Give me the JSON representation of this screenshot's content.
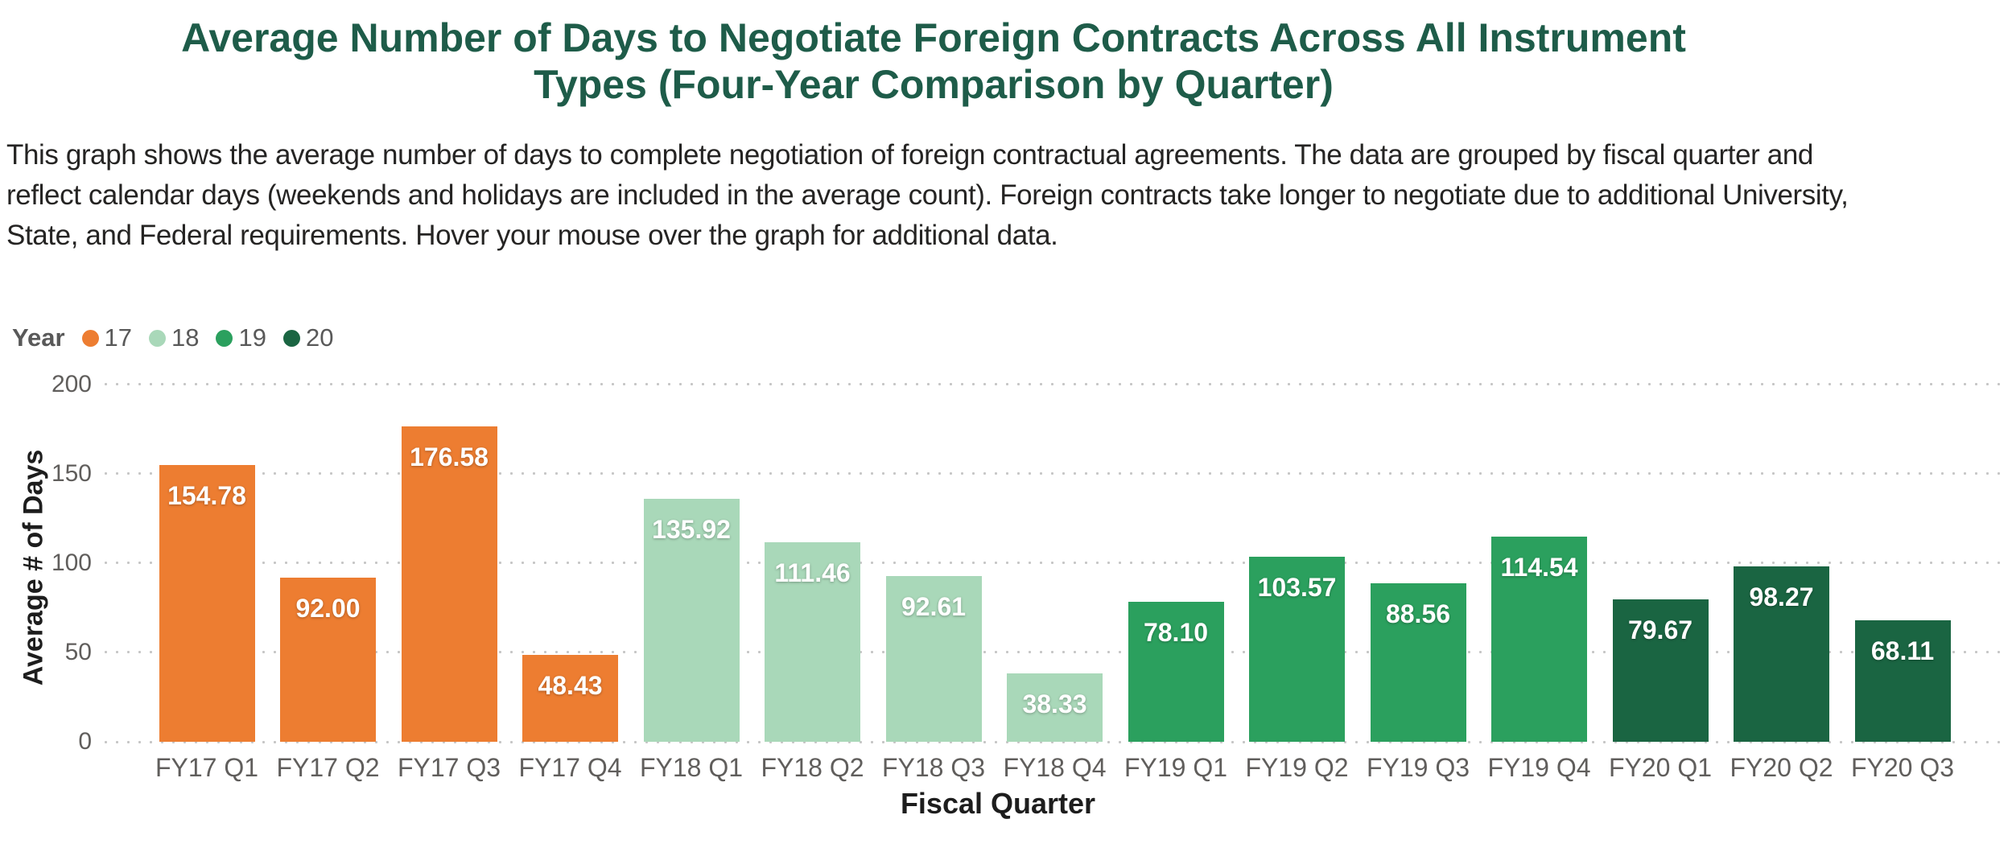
{
  "title": {
    "line1": "Average Number of Days to Negotiate Foreign Contracts Across All Instrument",
    "line2": "Types (Four-Year Comparison by Quarter)",
    "color": "#1E5C49"
  },
  "description_lines": [
    "This graph shows the average number of days to complete negotiation of foreign contractual agreements. The data are grouped by fiscal quarter and",
    "reflect calendar days (weekends and holidays are included in the average count).  Foreign contracts take longer to negotiate due to additional University,",
    "State, and Federal requirements.  Hover your mouse over the graph for additional data."
  ],
  "legend": {
    "title": "Year",
    "items": [
      {
        "label": "17",
        "color": "#ED7D31"
      },
      {
        "label": "18",
        "color": "#A9D8B9"
      },
      {
        "label": "19",
        "color": "#2BA05E"
      },
      {
        "label": "20",
        "color": "#1A6542"
      }
    ]
  },
  "chart_data": {
    "type": "bar",
    "title": "Average Number of Days to Negotiate Foreign Contracts Across All Instrument Types (Four-Year Comparison by Quarter)",
    "xlabel": "Fiscal Quarter",
    "ylabel": "Average # of Days",
    "ylim": [
      0,
      200
    ],
    "yticks": [
      0,
      50,
      100,
      150,
      200
    ],
    "grid": "horizontal-dotted",
    "legend_position": "top-left",
    "categories": [
      "FY17 Q1",
      "FY17 Q2",
      "FY17 Q3",
      "FY17 Q4",
      "FY18 Q1",
      "FY18 Q2",
      "FY18 Q3",
      "FY18 Q4",
      "FY19 Q1",
      "FY19 Q2",
      "FY19 Q3",
      "FY19 Q4",
      "FY20 Q1",
      "FY20 Q2",
      "FY20 Q3"
    ],
    "values": [
      154.78,
      92.0,
      176.58,
      48.43,
      135.92,
      111.46,
      92.61,
      38.33,
      78.1,
      103.57,
      88.56,
      114.54,
      79.67,
      98.27,
      68.11
    ],
    "bar_years": [
      "17",
      "17",
      "17",
      "17",
      "18",
      "18",
      "18",
      "18",
      "19",
      "19",
      "19",
      "19",
      "20",
      "20",
      "20"
    ],
    "colors_by_year": {
      "17": "#ED7D31",
      "18": "#A9D8B9",
      "19": "#2BA05E",
      "20": "#1A6542"
    },
    "value_label_color": "#FFFFFF",
    "axis_text_color": "#605E5C"
  }
}
